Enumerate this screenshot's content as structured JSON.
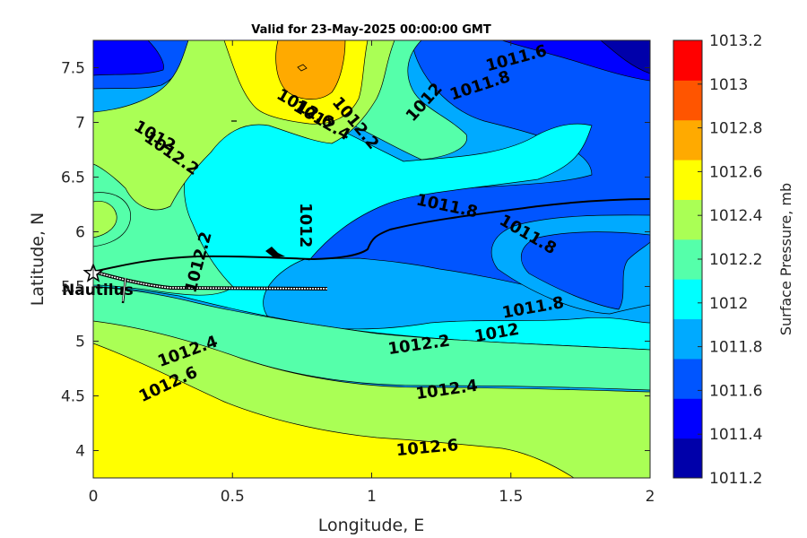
{
  "chart_data": {
    "type": "contour",
    "title": "Valid for 23-May-2025 00:00:00 GMT",
    "xlabel": "Longitude, E",
    "ylabel": "Latitude, N",
    "xlim": [
      0,
      2
    ],
    "ylim": [
      3.75,
      7.75
    ],
    "x_ticks": [
      "0",
      "0.5",
      "1",
      "1.5",
      "2"
    ],
    "y_ticks": [
      "4",
      "4.5",
      "5",
      "5.5",
      "6",
      "6.5",
      "7",
      "7.5"
    ],
    "colorbar": {
      "label": "Surface Pressure, mb",
      "levels": [
        "1011.2",
        "1011.4",
        "1011.6",
        "1011.8",
        "1012",
        "1012.2",
        "1012.4",
        "1012.6",
        "1012.8",
        "1013",
        "1013.2"
      ],
      "colors": [
        "#0000aa",
        "#0000ff",
        "#0055ff",
        "#00aaff",
        "#00ffff",
        "#55ffaa",
        "#aaff55",
        "#ffff00",
        "#ffaa00",
        "#ff5500",
        "#ff0000"
      ]
    },
    "contour_labels": [
      {
        "text": "1011.6",
        "x": 1.52,
        "y": 7.58,
        "angle": 15
      },
      {
        "text": "1011.8",
        "x": 1.39,
        "y": 7.33,
        "angle": 18
      },
      {
        "text": "1012",
        "x": 1.19,
        "y": 7.18,
        "angle": 48
      },
      {
        "text": "1012.6",
        "x": 0.76,
        "y": 7.12,
        "angle": -30
      },
      {
        "text": "1012.4",
        "x": 0.82,
        "y": 7.01,
        "angle": -30
      },
      {
        "text": "1012.2",
        "x": 0.94,
        "y": 6.99,
        "angle": -50
      },
      {
        "text": "1012",
        "x": 0.22,
        "y": 6.87,
        "angle": -30
      },
      {
        "text": "1012.2",
        "x": 0.28,
        "y": 6.71,
        "angle": -35
      },
      {
        "text": "1011.8",
        "x": 1.27,
        "y": 6.23,
        "angle": -12
      },
      {
        "text": "1012",
        "x": 0.76,
        "y": 6.06,
        "angle": -90
      },
      {
        "text": "1011.8",
        "x": 1.56,
        "y": 5.97,
        "angle": -30
      },
      {
        "text": "1012.2",
        "x": 0.38,
        "y": 5.72,
        "angle": 75
      },
      {
        "text": "1011.8",
        "x": 1.58,
        "y": 5.3,
        "angle": 10
      },
      {
        "text": "1012",
        "x": 1.45,
        "y": 5.07,
        "angle": 10
      },
      {
        "text": "1012.2",
        "x": 1.17,
        "y": 4.96,
        "angle": 8
      },
      {
        "text": "1012.4",
        "x": 0.34,
        "y": 4.9,
        "angle": 20
      },
      {
        "text": "1012.4",
        "x": 1.27,
        "y": 4.55,
        "angle": 8
      },
      {
        "text": "1012.6",
        "x": 0.27,
        "y": 4.6,
        "angle": 25
      },
      {
        "text": "1012.6",
        "x": 1.2,
        "y": 4.02,
        "angle": 5
      }
    ],
    "markers": [
      {
        "label": "Nautilus",
        "lon": 0.0,
        "lat": 5.62,
        "symbol": "star"
      }
    ]
  }
}
